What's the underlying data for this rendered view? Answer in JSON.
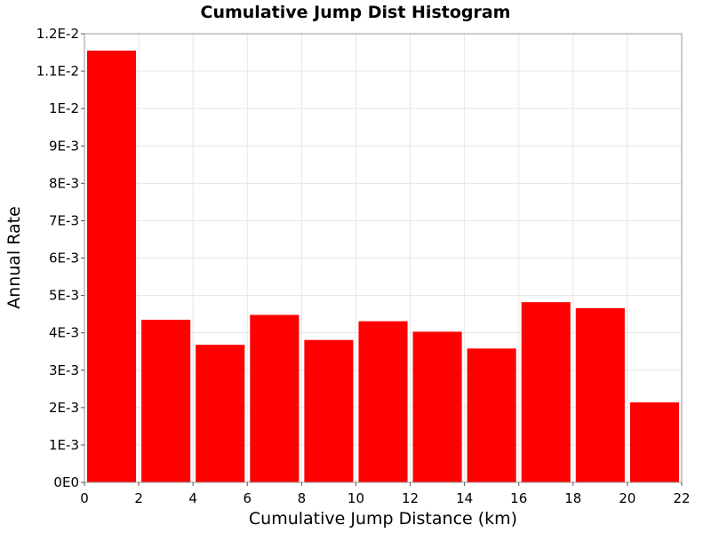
{
  "chart_data": {
    "type": "bar",
    "title": "Cumulative Jump Dist Histogram",
    "xlabel": "Cumulative Jump Distance (km)",
    "ylabel": "Annual Rate",
    "xlim": [
      0,
      22
    ],
    "ylim": [
      0,
      0.012
    ],
    "x_ticks": [
      0,
      2,
      4,
      6,
      8,
      10,
      12,
      14,
      16,
      18,
      20,
      22
    ],
    "x_tick_labels": [
      "0",
      "2",
      "4",
      "6",
      "8",
      "10",
      "12",
      "14",
      "16",
      "18",
      "20",
      "22"
    ],
    "y_ticks": [
      0,
      0.001,
      0.002,
      0.003,
      0.004,
      0.005,
      0.006,
      0.007,
      0.008,
      0.009,
      0.01,
      0.011,
      0.012
    ],
    "y_tick_labels": [
      "0E0",
      "1E-3",
      "2E-3",
      "3E-3",
      "4E-3",
      "5E-3",
      "6E-3",
      "7E-3",
      "8E-3",
      "9E-3",
      "1E-2",
      "1.1E-2",
      "1.2E-2"
    ],
    "bin_width": 2,
    "bins": [
      {
        "x": 1,
        "value": 0.01155
      },
      {
        "x": 3,
        "value": 0.00435
      },
      {
        "x": 5,
        "value": 0.00368
      },
      {
        "x": 7,
        "value": 0.00448
      },
      {
        "x": 9,
        "value": 0.00381
      },
      {
        "x": 11,
        "value": 0.00431
      },
      {
        "x": 13,
        "value": 0.00403
      },
      {
        "x": 15,
        "value": 0.00358
      },
      {
        "x": 17,
        "value": 0.00482
      },
      {
        "x": 19,
        "value": 0.00466
      },
      {
        "x": 21,
        "value": 0.00214
      }
    ],
    "bar_color": "#ff0000",
    "grid": true
  }
}
